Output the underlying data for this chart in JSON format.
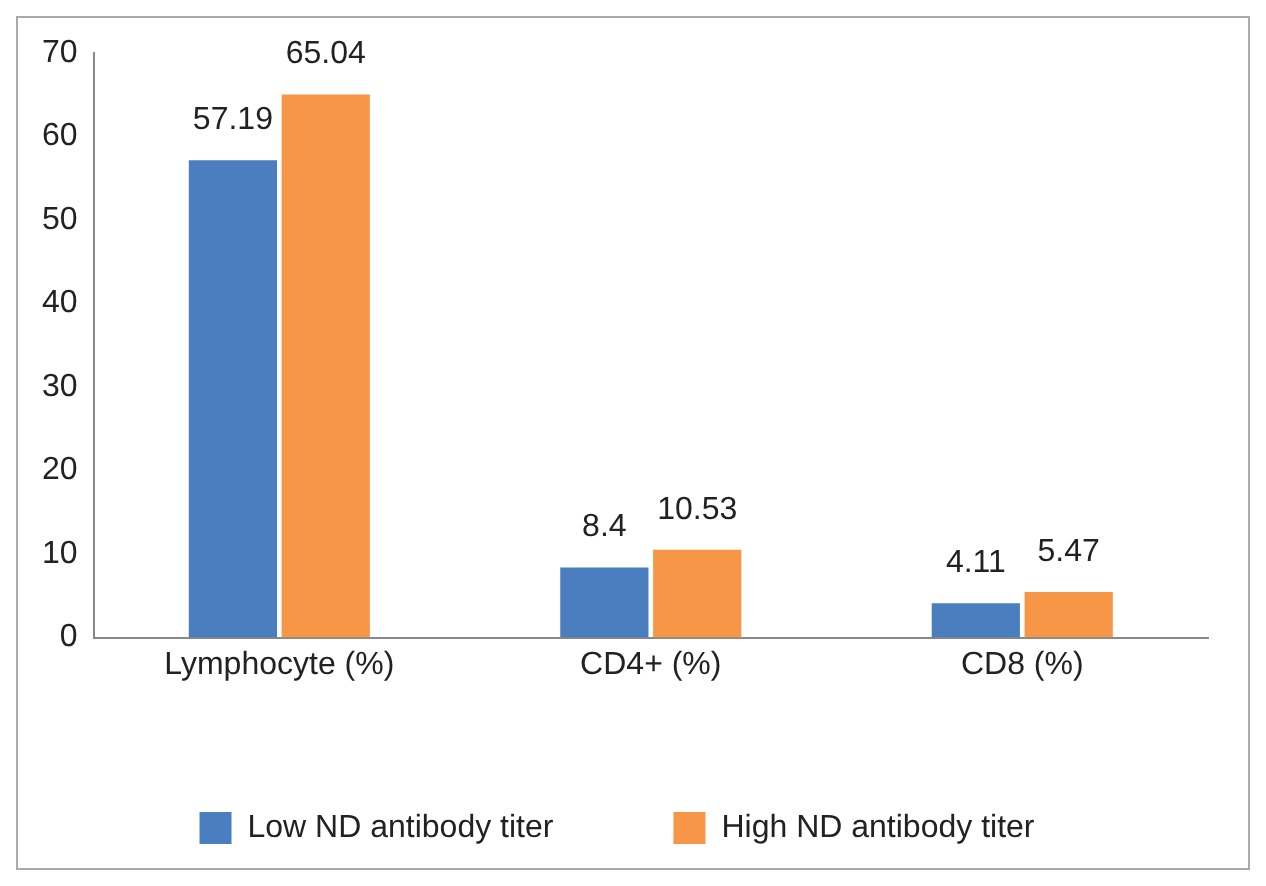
{
  "chart_data": {
    "type": "bar",
    "categories": [
      "Lymphocyte (%)",
      "CD4+ (%)",
      "CD8 (%)"
    ],
    "series": [
      {
        "name": "Low ND antibody titer",
        "color": "#4a7ebf",
        "values": [
          57.19,
          8.4,
          4.11
        ]
      },
      {
        "name": "High ND antibody titer",
        "color": "#f79646",
        "values": [
          65.04,
          10.53,
          5.47
        ]
      }
    ],
    "ylim": [
      0,
      70
    ],
    "yticks": [
      0,
      10,
      20,
      30,
      40,
      50,
      60,
      70
    ],
    "grid": false,
    "legend": "bottom",
    "data_labels": true
  }
}
